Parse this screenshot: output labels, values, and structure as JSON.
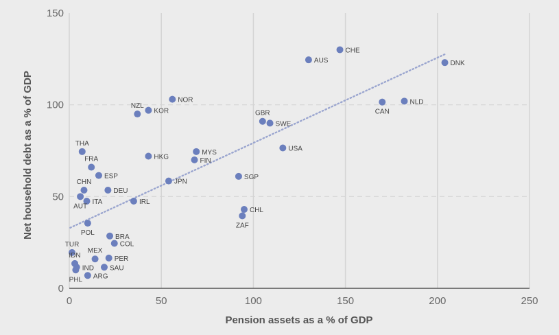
{
  "chart_data": {
    "type": "scatter",
    "xlabel": "Pension assets as a % of GDP",
    "ylabel": "Net household debt as a % of GDP",
    "xlim": [
      0,
      250
    ],
    "ylim": [
      0,
      150
    ],
    "x_ticks": [
      0,
      50,
      100,
      150,
      200,
      250
    ],
    "y_ticks": [
      0,
      50,
      100,
      150
    ],
    "grid": "vertical solid lines at x ticks; dashed horizontal lines at y ticks",
    "trendline": {
      "style": "dotted",
      "x": [
        0.5,
        205
      ],
      "y": [
        33,
        128
      ]
    },
    "colors": {
      "background": "#ececec",
      "marker": "#6b7fbd",
      "trendline": "#9aa5cf",
      "grid": "#d4d4d4"
    },
    "points": [
      {
        "label": "DNK",
        "x": 204,
        "y": 123,
        "pos": "right"
      },
      {
        "label": "CHE",
        "x": 147,
        "y": 130,
        "pos": "right"
      },
      {
        "label": "AUS",
        "x": 130,
        "y": 124.5,
        "pos": "right"
      },
      {
        "label": "NLD",
        "x": 182,
        "y": 102,
        "pos": "right"
      },
      {
        "label": "CAN",
        "x": 170,
        "y": 101.5,
        "pos": "below"
      },
      {
        "label": "NOR",
        "x": 56,
        "y": 103,
        "pos": "right"
      },
      {
        "label": "NZL",
        "x": 37,
        "y": 95,
        "pos": "above"
      },
      {
        "label": "KOR",
        "x": 43,
        "y": 97,
        "pos": "right"
      },
      {
        "label": "GBR",
        "x": 105,
        "y": 91,
        "pos": "above"
      },
      {
        "label": "SWE",
        "x": 109,
        "y": 90,
        "pos": "right"
      },
      {
        "label": "USA",
        "x": 116,
        "y": 76.5,
        "pos": "right"
      },
      {
        "label": "THA",
        "x": 7,
        "y": 74.5,
        "pos": "above"
      },
      {
        "label": "MYS",
        "x": 69,
        "y": 74.5,
        "pos": "right"
      },
      {
        "label": "FIN",
        "x": 68,
        "y": 70,
        "pos": "right"
      },
      {
        "label": "HKG",
        "x": 43,
        "y": 72,
        "pos": "right"
      },
      {
        "label": "FRA",
        "x": 12,
        "y": 66,
        "pos": "above"
      },
      {
        "label": "ESP",
        "x": 16,
        "y": 61.5,
        "pos": "right"
      },
      {
        "label": "SGP",
        "x": 92,
        "y": 61,
        "pos": "right"
      },
      {
        "label": "JPN",
        "x": 54,
        "y": 58.5,
        "pos": "right"
      },
      {
        "label": "CHN",
        "x": 8,
        "y": 53.5,
        "pos": "above"
      },
      {
        "label": "DEU",
        "x": 21,
        "y": 53.5,
        "pos": "right"
      },
      {
        "label": "AUT",
        "x": 6,
        "y": 50,
        "pos": "below"
      },
      {
        "label": "ITA",
        "x": 9.5,
        "y": 47.5,
        "pos": "right"
      },
      {
        "label": "IRL",
        "x": 35,
        "y": 47.5,
        "pos": "right"
      },
      {
        "label": "CHL",
        "x": 95,
        "y": 43,
        "pos": "right"
      },
      {
        "label": "ZAF",
        "x": 94,
        "y": 39.5,
        "pos": "below"
      },
      {
        "label": "POL",
        "x": 10,
        "y": 35.5,
        "pos": "below"
      },
      {
        "label": "BRA",
        "x": 22,
        "y": 28.5,
        "pos": "right"
      },
      {
        "label": "COL",
        "x": 24.5,
        "y": 24.5,
        "pos": "right"
      },
      {
        "label": "TUR",
        "x": 1.5,
        "y": 19.5,
        "pos": "above"
      },
      {
        "label": "MEX",
        "x": 14,
        "y": 16,
        "pos": "above"
      },
      {
        "label": "PER",
        "x": 21.5,
        "y": 16.5,
        "pos": "right"
      },
      {
        "label": "IDN",
        "x": 3,
        "y": 13.5,
        "pos": "above"
      },
      {
        "label": "IND",
        "x": 4,
        "y": 11.5,
        "pos": "right"
      },
      {
        "label": "SAU",
        "x": 19,
        "y": 11.5,
        "pos": "right"
      },
      {
        "label": "PHL",
        "x": 3.5,
        "y": 10,
        "pos": "below"
      },
      {
        "label": "ARG",
        "x": 10,
        "y": 7,
        "pos": "right"
      }
    ]
  }
}
